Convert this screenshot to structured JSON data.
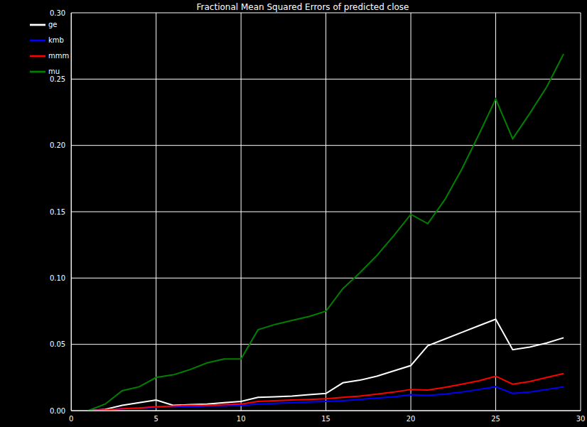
{
  "chart_data": {
    "type": "line",
    "title": "Fractional Mean Squared Errors of predicted close",
    "x": [
      1,
      2,
      3,
      4,
      5,
      6,
      7,
      8,
      9,
      10,
      11,
      12,
      13,
      14,
      15,
      16,
      17,
      18,
      19,
      20,
      21,
      22,
      23,
      24,
      25,
      26,
      27,
      28,
      29
    ],
    "series": [
      {
        "name": "ge",
        "color": "#ffffff",
        "values": [
          0,
          0.001,
          0.004,
          0.006,
          0.008,
          0.004,
          0.0045,
          0.005,
          0.006,
          0.007,
          0.01,
          0.0105,
          0.011,
          0.012,
          0.013,
          0.021,
          0.023,
          0.026,
          0.03,
          0.034,
          0.049,
          0.054,
          0.059,
          0.064,
          0.069,
          0.046,
          0.048,
          0.051,
          0.055
        ]
      },
      {
        "name": "kmb",
        "color": "#0000ff",
        "values": [
          0,
          0.0005,
          0.0015,
          0.002,
          0.0025,
          0.003,
          0.003,
          0.0035,
          0.0035,
          0.004,
          0.005,
          0.0055,
          0.006,
          0.0065,
          0.007,
          0.0075,
          0.0085,
          0.0095,
          0.0105,
          0.012,
          0.0115,
          0.0125,
          0.014,
          0.016,
          0.018,
          0.013,
          0.014,
          0.016,
          0.018
        ]
      },
      {
        "name": "mmm",
        "color": "#ff0000",
        "values": [
          0,
          0.0005,
          0.0015,
          0.002,
          0.003,
          0.0035,
          0.004,
          0.004,
          0.0045,
          0.005,
          0.007,
          0.0075,
          0.008,
          0.0085,
          0.009,
          0.01,
          0.011,
          0.0125,
          0.014,
          0.016,
          0.0155,
          0.0175,
          0.02,
          0.0225,
          0.026,
          0.02,
          0.022,
          0.025,
          0.028
        ]
      },
      {
        "name": "mu",
        "color": "#008000",
        "values": [
          0,
          0.005,
          0.015,
          0.018,
          0.025,
          0.027,
          0.031,
          0.036,
          0.039,
          0.039,
          0.061,
          0.065,
          0.068,
          0.071,
          0.075,
          0.092,
          0.104,
          0.117,
          0.132,
          0.148,
          0.141,
          0.159,
          0.182,
          0.208,
          0.235,
          0.205,
          0.224,
          0.244,
          0.269
        ]
      }
    ],
    "xlim": [
      0,
      30
    ],
    "xticks": [
      0,
      5,
      10,
      15,
      20,
      25,
      30
    ],
    "ylim": [
      0,
      0.3
    ],
    "yticks": [
      {
        "value": 0,
        "label": "0.00"
      },
      {
        "value": 0.05,
        "label": "0.05"
      },
      {
        "value": 0.1,
        "label": "0.10"
      },
      {
        "value": 0.15,
        "label": "0.15"
      },
      {
        "value": 0.2,
        "label": "0.20"
      },
      {
        "value": 0.25,
        "label": "0.25"
      },
      {
        "value": 0.3,
        "label": "0.30"
      }
    ],
    "grid": true,
    "legend": "upper left"
  }
}
